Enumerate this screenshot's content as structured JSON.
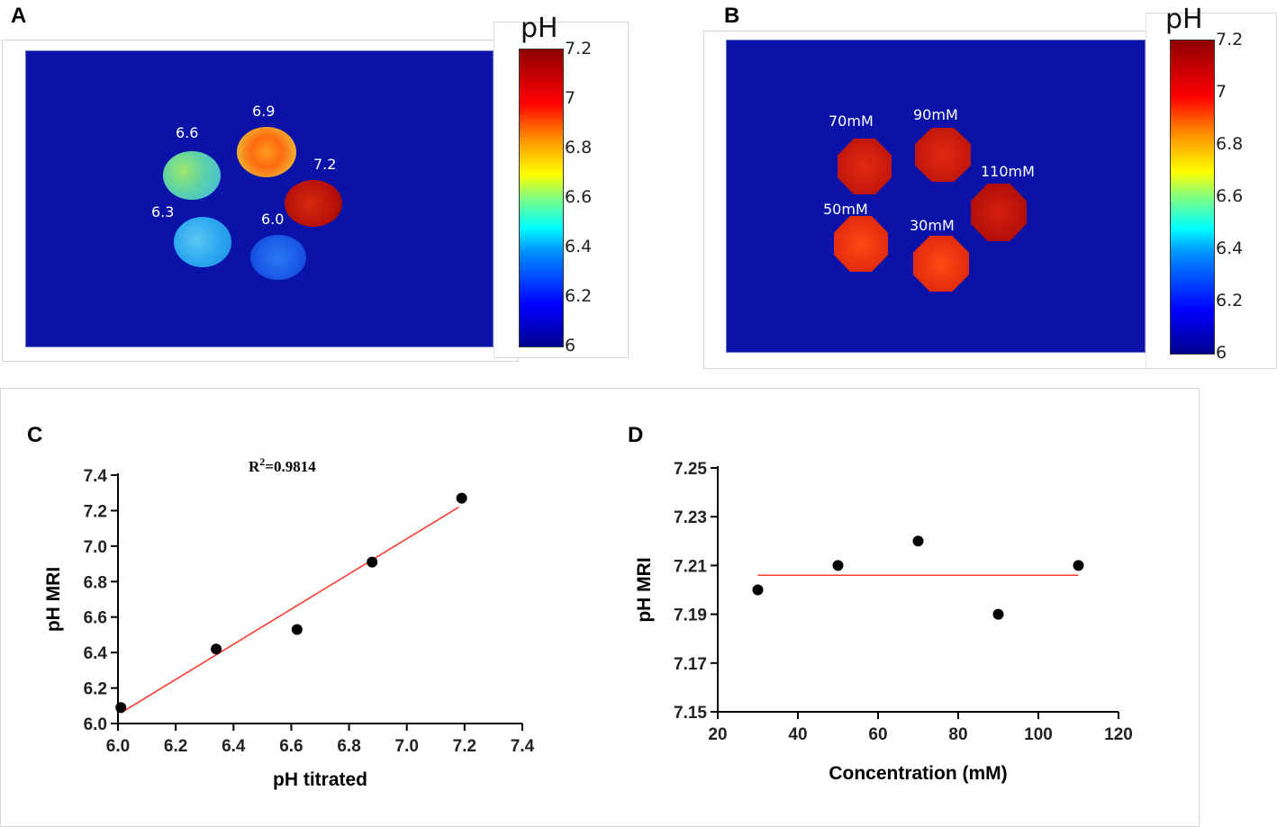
{
  "panels": {
    "a": {
      "letter": "A",
      "colorbar": {
        "title": "pH",
        "ticks": [
          "7.2",
          "7",
          "6.8",
          "6.6",
          "6.4",
          "6.2",
          "6"
        ]
      },
      "samples": [
        {
          "label": "6.6",
          "value": 6.6
        },
        {
          "label": "6.9",
          "value": 6.9
        },
        {
          "label": "7.2",
          "value": 7.2
        },
        {
          "label": "6.3",
          "value": 6.3
        },
        {
          "label": "6.0",
          "value": 6.0
        }
      ]
    },
    "b": {
      "letter": "B",
      "colorbar": {
        "title": "pH",
        "ticks": [
          "7.2",
          "7",
          "6.8",
          "6.6",
          "6.4",
          "6.2",
          "6"
        ]
      },
      "samples": [
        {
          "label": "70mM"
        },
        {
          "label": "90mM"
        },
        {
          "label": "110mM"
        },
        {
          "label": "50mM"
        },
        {
          "label": "30mM"
        }
      ]
    },
    "c": {
      "letter": "C"
    },
    "d": {
      "letter": "D"
    }
  },
  "colors": {
    "map_background": "#0a12a8",
    "fit_line": "#ff3b30",
    "points": "#000000"
  },
  "chart_data": [
    {
      "type": "scatter",
      "panel": "C",
      "title": "",
      "xlabel": "pH titrated",
      "ylabel": "pH MRI",
      "annotation": {
        "base": "R",
        "sup": "2",
        "rest": "=0.9814"
      },
      "xlim": [
        6.0,
        7.4
      ],
      "ylim": [
        6.0,
        7.4
      ],
      "xticks": [
        "6.0",
        "6.2",
        "6.4",
        "6.6",
        "6.8",
        "7.0",
        "7.2",
        "7.4"
      ],
      "yticks": [
        "6.0",
        "6.2",
        "6.4",
        "6.6",
        "6.8",
        "7.0",
        "7.2",
        "7.4"
      ],
      "points": [
        {
          "x": 6.01,
          "y": 6.09
        },
        {
          "x": 6.34,
          "y": 6.42
        },
        {
          "x": 6.62,
          "y": 6.53
        },
        {
          "x": 6.88,
          "y": 6.91
        },
        {
          "x": 7.19,
          "y": 7.27
        }
      ],
      "fit": {
        "x1": 6.01,
        "y1": 6.06,
        "x2": 7.18,
        "y2": 7.22
      }
    },
    {
      "type": "scatter",
      "panel": "D",
      "title": "",
      "xlabel": "Concentration (mM)",
      "ylabel": "pH MRI",
      "xlim": [
        20,
        120
      ],
      "ylim": [
        7.15,
        7.25
      ],
      "xticks": [
        "20",
        "40",
        "60",
        "80",
        "100",
        "120"
      ],
      "yticks": [
        "7.15",
        "7.17",
        "7.19",
        "7.21",
        "7.23",
        "7.25"
      ],
      "points": [
        {
          "x": 30,
          "y": 7.2
        },
        {
          "x": 50,
          "y": 7.21
        },
        {
          "x": 70,
          "y": 7.22
        },
        {
          "x": 90,
          "y": 7.19
        },
        {
          "x": 110,
          "y": 7.21
        }
      ],
      "fit": {
        "x1": 30,
        "y1": 7.206,
        "x2": 110,
        "y2": 7.206
      }
    }
  ]
}
